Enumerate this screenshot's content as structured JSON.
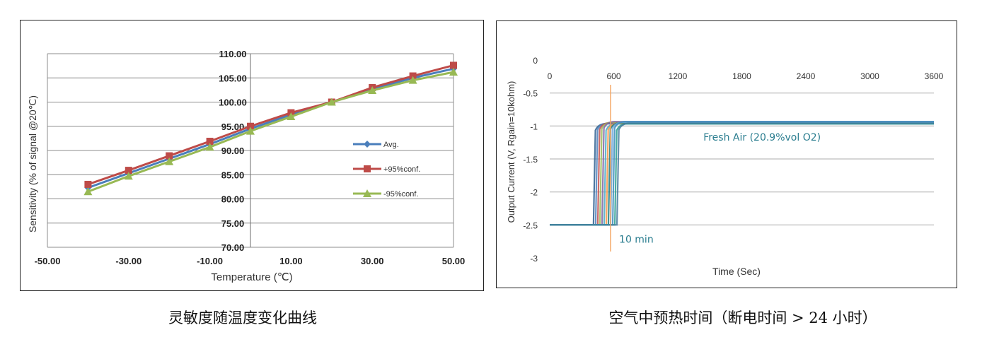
{
  "captions": {
    "left": "灵敏度随温度变化曲线",
    "right": "空气中预热时间（断电时间 > 24 小时）"
  },
  "chart_data": [
    {
      "type": "line",
      "xlabel": "Temperature (℃)",
      "ylabel": "Sensitivity (% of signal @20℃)",
      "xlim": [
        -50,
        50
      ],
      "ylim": [
        70,
        110
      ],
      "xticks": [
        "-50.00",
        "-30.00",
        "-10.00",
        "10.00",
        "30.00",
        "50.00"
      ],
      "yticks": [
        "70.00",
        "75.00",
        "80.00",
        "85.00",
        "90.00",
        "95.00",
        "100.00",
        "105.00",
        "110.00"
      ],
      "grid": "horizontal",
      "legend_position": "right",
      "x": [
        -40,
        -30,
        -20,
        -10,
        0,
        10,
        20,
        30,
        40,
        50
      ],
      "series": [
        {
          "name": "Avg.",
          "color": "#4a7ebb",
          "marker": "diamond",
          "values": [
            82.3,
            85.3,
            88.3,
            91.3,
            94.5,
            97.4,
            100.0,
            102.7,
            105.0,
            106.9
          ]
        },
        {
          "name": "+95%conf.",
          "color": "#be4b48",
          "marker": "square",
          "values": [
            83.0,
            85.9,
            88.9,
            91.9,
            95.0,
            97.8,
            100.0,
            103.0,
            105.4,
            107.6
          ]
        },
        {
          "name": "-95%conf.",
          "color": "#98b954",
          "marker": "triangle",
          "values": [
            81.5,
            84.7,
            87.7,
            90.7,
            94.0,
            97.0,
            100.0,
            102.4,
            104.5,
            106.2
          ]
        }
      ]
    },
    {
      "type": "line",
      "xlabel": "Time (Sec)",
      "ylabel": "Output Current (V, Rgain=10kohm)",
      "xlim": [
        0,
        3600
      ],
      "ylim": [
        -3,
        0
      ],
      "xticks": [
        "0",
        "600",
        "1200",
        "1800",
        "2400",
        "3000",
        "3600"
      ],
      "yticks": [
        "0",
        "-0.5",
        "-1",
        "-1.5",
        "-2",
        "-2.5",
        "-3"
      ],
      "grid": "horizontal",
      "baseline": -2.5,
      "steady": -0.95,
      "rise_times": [
        410,
        430,
        450,
        470,
        490,
        510,
        530,
        550,
        570,
        590,
        610,
        630
      ],
      "series_colors": [
        "#2f5f8f",
        "#4f81bd",
        "#c0504d",
        "#9bbb59",
        "#8064a2",
        "#4bacc6",
        "#f79646",
        "#1f7a7a",
        "#6fa8dc",
        "#3c8dbc",
        "#2a9d8f",
        "#457b9d"
      ],
      "marker_line": {
        "x": 570,
        "color": "#f4a460"
      },
      "annotations": [
        {
          "text": "Fresh Air (20.9%vol O2)",
          "x": 1440,
          "y": -1.22,
          "color": "#2a7d8f"
        },
        {
          "text": "10 min",
          "x": 650,
          "y": -2.77,
          "color": "#2a7d8f"
        }
      ]
    }
  ]
}
